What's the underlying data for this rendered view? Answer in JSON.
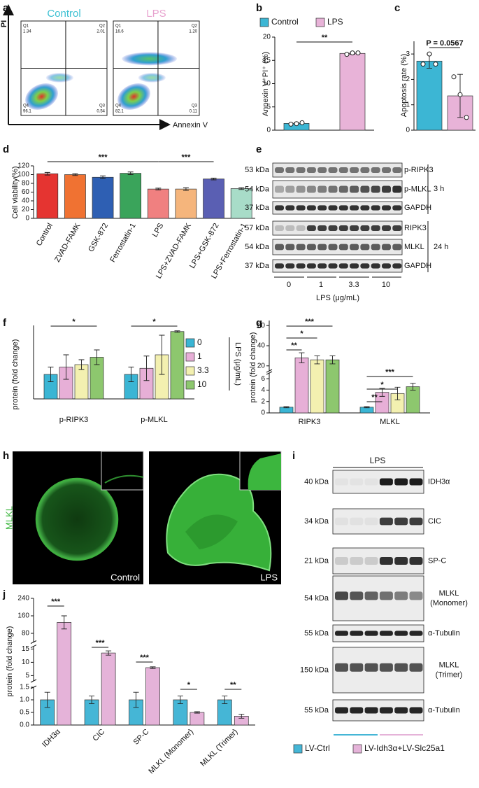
{
  "panel_labels": [
    "a",
    "b",
    "c",
    "d",
    "e",
    "f",
    "g",
    "h",
    "i",
    "j"
  ],
  "flow_cytometry": {
    "y_axis": "PI",
    "x_axis": "Annexin V",
    "plots": [
      {
        "title": "Control",
        "color": "#3ec1d3",
        "quadrants": [
          {
            "name": "Q1",
            "value": "1.34"
          },
          {
            "name": "Q2",
            "value": "2.01"
          },
          {
            "name": "Q3",
            "value": "0.54"
          },
          {
            "name": "Q4",
            "value": "96.1"
          }
        ]
      },
      {
        "title": "LPS",
        "color": "#e8a3cf",
        "quadrants": [
          {
            "name": "Q1",
            "value": "16.6"
          },
          {
            "name": "Q2",
            "value": "1.20"
          },
          {
            "name": "Q3",
            "value": "0.11"
          },
          {
            "name": "Q4",
            "value": "82.1"
          }
        ]
      }
    ]
  },
  "chart_data": [
    {
      "type": "bar",
      "ylabel": "Annexin V⁺PI⁺ (%)",
      "ylim": [
        0,
        20
      ],
      "yticks": [
        0,
        5,
        10,
        15,
        20
      ],
      "series": [
        {
          "name": "Control",
          "color": "#3cb6d4",
          "values": [
            1.45
          ],
          "errors": [
            0.2
          ],
          "points": [
            [
              1.3,
              1.4,
              1.6
            ]
          ]
        },
        {
          "name": "LPS",
          "color": "#e8b3d8",
          "values": [
            16.5
          ],
          "errors": [
            0.2
          ],
          "points": [
            [
              16.3,
              16.6,
              16.6
            ]
          ]
        }
      ],
      "annotations": [
        "**"
      ]
    },
    {
      "type": "bar",
      "ylabel": "Apoptosis rate (%)",
      "ylim": [
        0,
        3.5
      ],
      "yticks": [
        0,
        1,
        2,
        3
      ],
      "values": [
        2.72,
        1.35
      ],
      "colors": [
        "#3cb6d4",
        "#e8b3d8"
      ],
      "errors": [
        0.28,
        0.85
      ],
      "points": [
        [
          2.6,
          3.0,
          2.6
        ],
        [
          2.1,
          1.4,
          0.5
        ]
      ],
      "annotations": [
        "P = 0.0567"
      ]
    },
    {
      "type": "bar",
      "ylabel": "Cell viability(%)",
      "ylim": [
        0,
        120
      ],
      "yticks": [
        0,
        20,
        40,
        60,
        80,
        100,
        120
      ],
      "categories": [
        "Control",
        "ZVAD-FAMK",
        "GSK-872",
        "Ferrostatin-1",
        "LPS",
        "LPS+ZVAD-FAMK",
        "LPS+GSK-872",
        "LPS+Ferrostatin-1"
      ],
      "values": [
        102,
        100,
        94,
        103,
        67,
        67,
        90,
        68
      ],
      "errors": [
        3,
        2,
        3,
        3,
        2,
        3,
        2,
        2
      ],
      "colors": [
        "#e53431",
        "#f07232",
        "#2e5fb3",
        "#3aa45b",
        "#f08080",
        "#f5b57c",
        "#5a5fb3",
        "#a8dcc8"
      ],
      "annotations": [
        "***",
        "***"
      ]
    },
    {
      "type": "bar",
      "ylabel": "protein (fold change)",
      "ylim": [
        0,
        3
      ],
      "categories": [
        "p-RIPK3",
        "p-MLKL"
      ],
      "legend_title": "LPS (μg/mL)",
      "series": [
        {
          "name": "0",
          "color": "#3ab5d4",
          "values": [
            1.0,
            1.0
          ],
          "errors": [
            0.3,
            0.3
          ]
        },
        {
          "name": "1",
          "color": "#e7afd7",
          "values": [
            1.3,
            1.25
          ],
          "errors": [
            0.5,
            0.5
          ]
        },
        {
          "name": "3.3",
          "color": "#f3f0b0",
          "values": [
            1.4,
            1.8
          ],
          "errors": [
            0.2,
            0.8
          ]
        },
        {
          "name": "10",
          "color": "#8dc76e",
          "values": [
            1.7,
            2.75
          ],
          "errors": [
            0.3,
            0.03
          ]
        }
      ],
      "annotations": [
        "*",
        "*"
      ]
    },
    {
      "type": "bar",
      "ylabel": "protein (fold change)",
      "categories": [
        "RIPK3",
        "MLKL"
      ],
      "y_segments": [
        {
          "ylim": [
            0,
            7
          ],
          "yticks": [
            0,
            2,
            4,
            6
          ]
        },
        {
          "ylim": [
            15,
            65
          ],
          "yticks": [
            20,
            40,
            60
          ]
        }
      ],
      "series": [
        {
          "color": "#3ab5d4",
          "values": [
            1,
            1
          ],
          "errors": [
            0.1,
            0.1
          ]
        },
        {
          "color": "#e7afd7",
          "values": [
            28,
            3.6
          ],
          "errors": [
            5,
            0.7
          ]
        },
        {
          "color": "#f3f0b0",
          "values": [
            26,
            3.4
          ],
          "errors": [
            4,
            1.1
          ]
        },
        {
          "color": "#8dc76e",
          "values": [
            26,
            4.6
          ],
          "errors": [
            4,
            0.6
          ]
        }
      ],
      "annotations": [
        "***",
        "*",
        "**",
        "***",
        "*",
        "**"
      ]
    },
    {
      "type": "bar",
      "ylabel": "protein (fold change)",
      "categories": [
        "IDH3α",
        "CIC",
        "SP-C",
        "MLKL (Monomer)",
        "MLKL (Trimer)"
      ],
      "y_segments": [
        {
          "ylim": [
            0,
            1.5
          ],
          "yticks": [
            {
              "value": 0,
              "label": "0.0"
            },
            {
              "value": 0.5,
              "label": "0.5"
            },
            {
              "value": 1,
              "label": "1.0"
            },
            {
              "value": 1.5,
              "label": "1.5"
            }
          ]
        },
        {
          "ylim": [
            3,
            16
          ],
          "yticks": [
            5,
            10,
            15
          ]
        },
        {
          "ylim": [
            40,
            240
          ],
          "yticks": [
            80,
            160,
            240
          ]
        }
      ],
      "series": [
        {
          "name": "LV-Ctrl",
          "color": "#45b6d6",
          "values": [
            1,
            1,
            1,
            1,
            1
          ],
          "errors": [
            0.3,
            0.15,
            0.3,
            0.15,
            0.15
          ]
        },
        {
          "name": "LV-Idh3α+LV-Slc25a1",
          "color": "#e5b3d9",
          "values": [
            130,
            13.5,
            8,
            0.5,
            0.35
          ],
          "errors": [
            30,
            0.8,
            0.3,
            0.03,
            0.08
          ]
        }
      ],
      "annotations": [
        "***",
        "***",
        "***",
        "*",
        "**"
      ]
    }
  ],
  "western_blot_e": {
    "rows": [
      {
        "kda": "53 kDa",
        "protein": "p-RIPK3"
      },
      {
        "kda": "54 kDa",
        "protein": "p-MLKL"
      },
      {
        "kda": "37 kDa",
        "protein": "GAPDH"
      },
      {
        "kda": "57 kDa",
        "protein": "RIPK3"
      },
      {
        "kda": "54 kDa",
        "protein": "MLKL"
      },
      {
        "kda": "37 kDa",
        "protein": "GAPDH"
      }
    ],
    "times": [
      "3 h",
      "24 h"
    ],
    "lanes": [
      "0",
      "1",
      "3.3",
      "10"
    ],
    "x_label": "LPS (μg/mL)"
  },
  "microscopy": {
    "stain": "MLKL",
    "images": [
      "Control",
      "LPS"
    ]
  },
  "western_blot_i": {
    "treatment": "LPS",
    "rows": [
      {
        "kda": "40 kDa",
        "protein": [
          "IDH3α"
        ]
      },
      {
        "kda": "34 kDa",
        "protein": [
          "CIC"
        ]
      },
      {
        "kda": "21 kDa",
        "protein": [
          "SP-C"
        ]
      },
      {
        "kda": "54 kDa",
        "protein": [
          "MLKL",
          "(Monomer)"
        ]
      },
      {
        "kda": "55 kDa",
        "protein": [
          "α-Tubulin"
        ]
      },
      {
        "kda": "150 kDa",
        "protein": [
          "MLKL",
          "(Trimer)"
        ]
      },
      {
        "kda": "55 kDa",
        "protein": [
          "α-Tubulin"
        ]
      }
    ]
  }
}
